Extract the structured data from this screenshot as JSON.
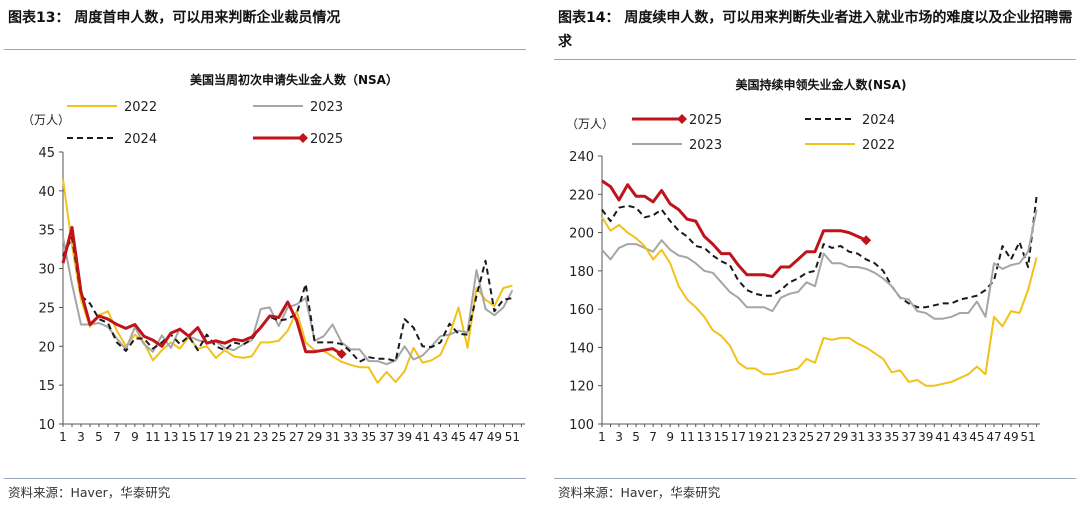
{
  "panels": [
    {
      "heading": "图表13：  周度首申人数，可以用来判断企业裁员情况",
      "source": "资料来源：Haver，华泰研究",
      "chart_data": {
        "type": "line",
        "title": "美国当周初次申请失业金人数（NSA）",
        "yunit": "（万人）",
        "ylim": [
          10,
          45
        ],
        "yticks": [
          10,
          15,
          20,
          25,
          30,
          35,
          40,
          45
        ],
        "x": [
          1,
          2,
          3,
          4,
          5,
          6,
          7,
          8,
          9,
          10,
          11,
          12,
          13,
          14,
          15,
          16,
          17,
          18,
          19,
          20,
          21,
          22,
          23,
          24,
          25,
          26,
          27,
          28,
          29,
          30,
          31,
          32,
          33,
          34,
          35,
          36,
          37,
          38,
          39,
          40,
          41,
          42,
          43,
          44,
          45,
          46,
          47,
          48,
          49,
          50,
          51,
          52
        ],
        "xticks": [
          1,
          3,
          5,
          7,
          9,
          11,
          13,
          15,
          17,
          19,
          21,
          23,
          25,
          27,
          29,
          31,
          33,
          35,
          37,
          39,
          41,
          43,
          45,
          47,
          49,
          51
        ],
        "legend": [
          "2022",
          "2023",
          "2024",
          "2025"
        ],
        "series": [
          {
            "name": "2022",
            "color": "#f2c21b",
            "style": "solid",
            "values": [
              41.5,
              33,
              26,
              22.5,
              24,
              24.5,
              22,
              20,
              21.5,
              20.5,
              18.2,
              19.5,
              20.5,
              19.7,
              21.2,
              19.7,
              20,
              18.5,
              19.5,
              18.7,
              18.5,
              18.7,
              20.5,
              20.5,
              20.7,
              22,
              24.5,
              20.5,
              19.5,
              19.4,
              18.7,
              18.0,
              17.6,
              17.3,
              17.3,
              15.3,
              16.7,
              15.4,
              16.8,
              19.8,
              17.9,
              18.2,
              18.9,
              21.5,
              25,
              19.8,
              27.5,
              26,
              25.2,
              27.5,
              27.8,
              null
            ]
          },
          {
            "name": "2023",
            "color": "#a6a6a6",
            "style": "solid",
            "values": [
              34,
              28,
              22.8,
              22.8,
              23,
              22.5,
              21,
              19.6,
              22.5,
              20.3,
              19.3,
              21.4,
              19.8,
              22.3,
              21.3,
              20.8,
              20.5,
              20.6,
              19.8,
              19.5,
              20.2,
              20.8,
              24.8,
              25,
              22.6,
              25,
              25.4,
              26.2,
              20.7,
              21.3,
              22.8,
              20.5,
              19.6,
              19.6,
              18.1,
              18.1,
              17.7,
              18.2,
              20,
              18.3,
              18.8,
              20,
              21.3,
              21.5,
              22,
              21.8,
              29.8,
              24.8,
              24,
              25,
              27.2,
              null
            ]
          },
          {
            "name": "2024",
            "color": "#1a1a1a",
            "style": "dash",
            "values": [
              31.6,
              34,
              26.5,
              25.5,
              23.5,
              23,
              20.5,
              19.4,
              21,
              21,
              19.7,
              20.5,
              21.5,
              20.3,
              21.3,
              19.5,
              21.5,
              20,
              19.5,
              20.5,
              20.2,
              20.9,
              22.5,
              23.8,
              23.3,
              23.5,
              24.2,
              28,
              20.5,
              20.5,
              20.5,
              20.3,
              19.3,
              18,
              18.6,
              18.4,
              18.4,
              18.1,
              23.5,
              22.4,
              20,
              19.9,
              20.5,
              22.9,
              21.6,
              21.5,
              26.5,
              31,
              24.5,
              26,
              26.2,
              null
            ]
          },
          {
            "name": "2025",
            "color": "#c0141b",
            "style": "solid",
            "values": [
              30.7,
              35.3,
              27,
              22.8,
              23.9,
              23.5,
              22.8,
              22.3,
              22.8,
              21.3,
              20.8,
              20,
              21.7,
              22.2,
              21.3,
              22.4,
              20.4,
              20.7,
              20.4,
              20.9,
              20.7,
              21.2,
              22.4,
              23.9,
              23.7,
              25.7,
              23.3,
              19.3,
              19.3,
              19.5,
              19.7,
              19.0,
              null,
              null,
              null,
              null,
              null,
              null,
              null,
              null,
              null,
              null,
              null,
              null,
              null,
              null,
              null,
              null,
              null,
              null,
              null,
              null
            ]
          }
        ]
      }
    },
    {
      "heading": "图表14：  周度续申人数，可以用来判断失业者进入就业市场的难度以及企业招聘需求",
      "source": "资料来源：Haver，华泰研究",
      "chart_data": {
        "type": "line",
        "title": "美国持续申领失业金人数(NSA)",
        "yunit": "（万人）",
        "ylim": [
          100,
          240
        ],
        "yticks": [
          100,
          120,
          140,
          160,
          180,
          200,
          220,
          240
        ],
        "x": [
          1,
          2,
          3,
          4,
          5,
          6,
          7,
          8,
          9,
          10,
          11,
          12,
          13,
          14,
          15,
          16,
          17,
          18,
          19,
          20,
          21,
          22,
          23,
          24,
          25,
          26,
          27,
          28,
          29,
          30,
          31,
          32,
          33,
          34,
          35,
          36,
          37,
          38,
          39,
          40,
          41,
          42,
          43,
          44,
          45,
          46,
          47,
          48,
          49,
          50,
          51,
          52
        ],
        "xticks": [
          1,
          3,
          5,
          7,
          9,
          11,
          13,
          15,
          17,
          19,
          21,
          23,
          25,
          27,
          29,
          31,
          33,
          35,
          37,
          39,
          41,
          43,
          45,
          47,
          49,
          51
        ],
        "legend": [
          "2025",
          "2024",
          "2023",
          "2022"
        ],
        "series": [
          {
            "name": "2025",
            "color": "#c0141b",
            "style": "solid",
            "values": [
              227,
              224,
              217,
              225,
              219,
              219,
              216,
              222,
              215,
              212,
              207,
              206,
              198,
              194,
              189,
              189,
              183,
              178,
              178,
              178,
              177,
              182,
              182,
              186,
              190,
              190,
              201,
              201,
              201,
              200,
              198,
              196,
              null,
              null,
              null,
              null,
              null,
              null,
              null,
              null,
              null,
              null,
              null,
              null,
              null,
              null,
              null,
              null,
              null,
              null,
              null,
              null
            ]
          },
          {
            "name": "2024",
            "color": "#1a1a1a",
            "style": "dash",
            "values": [
              212,
              206,
              213,
              214,
              213,
              208,
              209,
              212,
              206,
              201,
              198,
              193,
              192,
              188,
              185,
              183,
              175,
              170,
              168,
              167,
              167,
              170,
              174,
              176,
              179,
              180,
              194,
              192,
              193,
              190,
              189,
              186,
              184,
              180,
              172,
              166,
              163,
              161,
              161,
              162,
              163,
              163,
              165,
              166,
              167,
              170,
              175,
              193,
              186,
              195,
              182,
              219
            ]
          },
          {
            "name": "2023",
            "color": "#a6a6a6",
            "style": "solid",
            "values": [
              191,
              186,
              192,
              194,
              194,
              192,
              190,
              196,
              191,
              188,
              187,
              184,
              180,
              179,
              174,
              169,
              166,
              161,
              161,
              161,
              159,
              166,
              168,
              169,
              174,
              172,
              189,
              184,
              184,
              182,
              182,
              181,
              179,
              176,
              172,
              166,
              165,
              159,
              158,
              155,
              155,
              156,
              158,
              158,
              164,
              156,
              184,
              181,
              183,
              184,
              190,
              212
            ]
          },
          {
            "name": "2022",
            "color": "#f2c21b",
            "style": "solid",
            "values": [
              208,
              201,
              204,
              200,
              197,
              193,
              186,
              191,
              184,
              172,
              165,
              161,
              156,
              149,
              146,
              141,
              132,
              129,
              129,
              126,
              126,
              127,
              128,
              129,
              134,
              132,
              145,
              144,
              145,
              145,
              142,
              140,
              137,
              134,
              127,
              128,
              122,
              123,
              120,
              120,
              121,
              122,
              124,
              126,
              130,
              126,
              156,
              151,
              159,
              158,
              170,
              187
            ]
          }
        ]
      }
    }
  ]
}
